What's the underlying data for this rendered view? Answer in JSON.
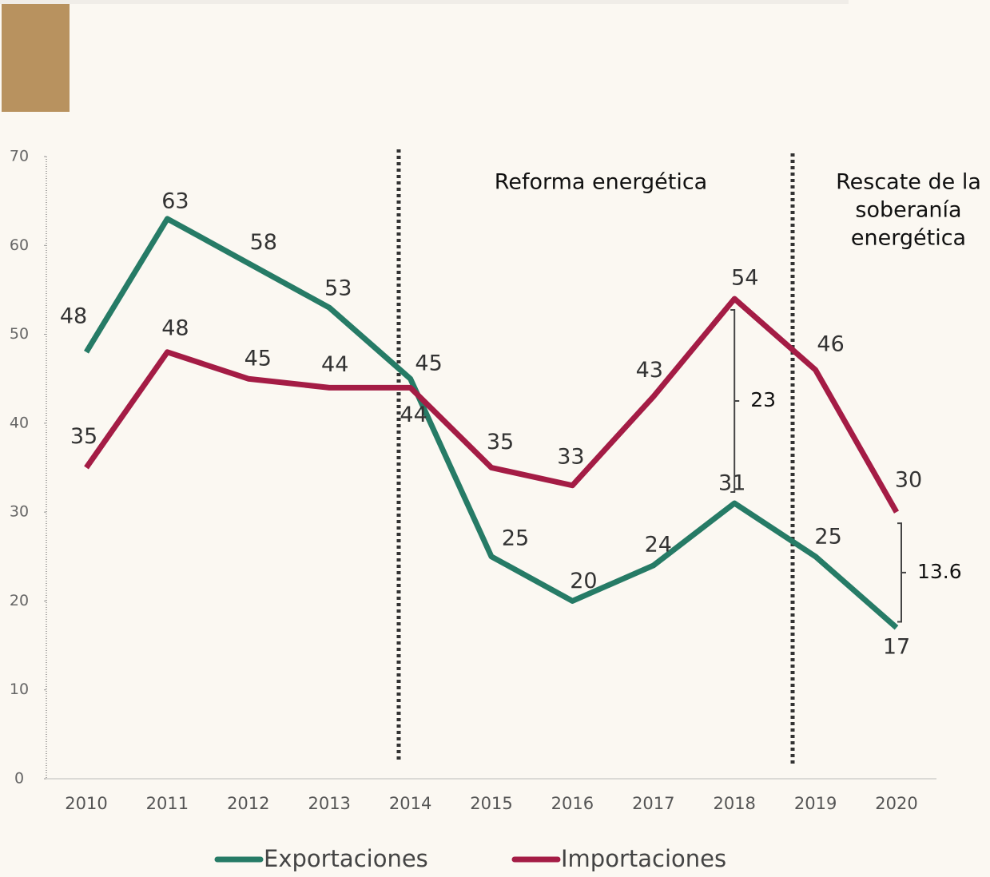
{
  "chart_data": {
    "type": "line",
    "categories": [
      "2010",
      "2011",
      "2012",
      "2013",
      "2014",
      "2015",
      "2016",
      "2017",
      "2018",
      "2019",
      "2020"
    ],
    "series": [
      {
        "name": "Exportaciones",
        "color": "#267b66",
        "values": [
          48,
          63,
          58,
          53,
          45,
          25,
          20,
          24,
          31,
          25,
          17
        ]
      },
      {
        "name": "Importaciones",
        "color": "#a41c45",
        "values": [
          35,
          48,
          45,
          44,
          44,
          35,
          33,
          43,
          54,
          46,
          30
        ]
      }
    ],
    "ylim": [
      0,
      70
    ],
    "yticks": [
      0,
      10,
      20,
      30,
      40,
      50,
      60,
      70
    ],
    "annotations": [
      "Reforma energética",
      [
        "Rescate de la",
        "soberanía",
        "energética"
      ]
    ],
    "gaps": [
      {
        "category": "2018",
        "value": 23
      },
      {
        "category": "2020",
        "value": 13.6
      }
    ]
  }
}
